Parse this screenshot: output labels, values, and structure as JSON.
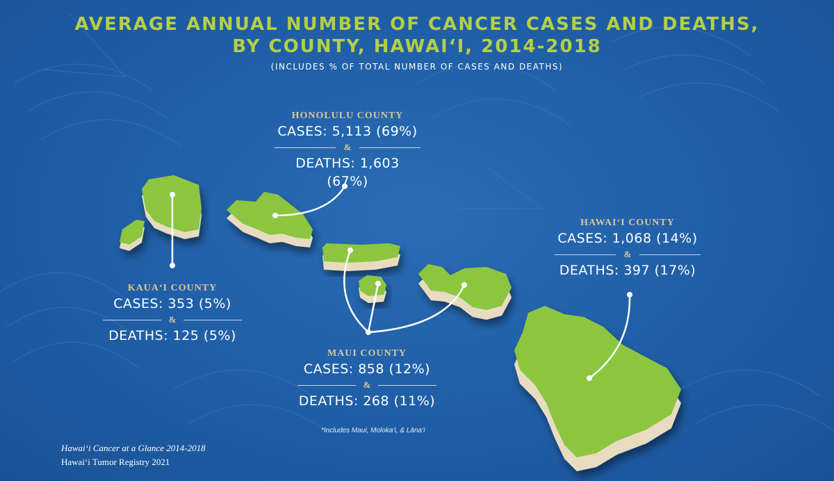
{
  "title_line1": "AVERAGE ANNUAL NUMBER OF CANCER CASES AND DEATHS,",
  "title_line2": "BY COUNTY, HAWAI‘I, 2014-2018",
  "subtitle": "(INCLUDES % OF TOTAL NUMBER OF CASES AND DEATHS)",
  "counties": {
    "honolulu": {
      "name": "HONOLULU COUNTY",
      "cases": "CASES: 5,113 (69%)",
      "amp": "&",
      "deaths": "DEATHS: 1,603 (67%)"
    },
    "kauai": {
      "name": "KAUA‘I COUNTY",
      "cases": "CASES: 353 (5%)",
      "amp": "&",
      "deaths": "DEATHS: 125 (5%)"
    },
    "maui": {
      "name": "MAUI COUNTY",
      "cases": "CASES: 858 (12%)",
      "amp": "&",
      "deaths": "DEATHS: 268 (11%)"
    },
    "hawaii": {
      "name": "HAWAI‘I COUNTY",
      "cases": "CASES: 1,068 (14%)",
      "amp": "&",
      "deaths": "DEATHS: 397 (17%)"
    }
  },
  "footnote": "*Includes Maui, Moloka‘i, & Lāna‘i",
  "source": {
    "line1": "Hawai‘i Cancer at a Glance 2014-2018",
    "line2": "Hawai‘i Tumor Registry 2021"
  },
  "colors": {
    "ocean": "#1f5ea6",
    "land": "#8cc63f",
    "land_side": "#e7dcc0",
    "title": "#b5cf45",
    "county_name": "#d9c79a"
  }
}
